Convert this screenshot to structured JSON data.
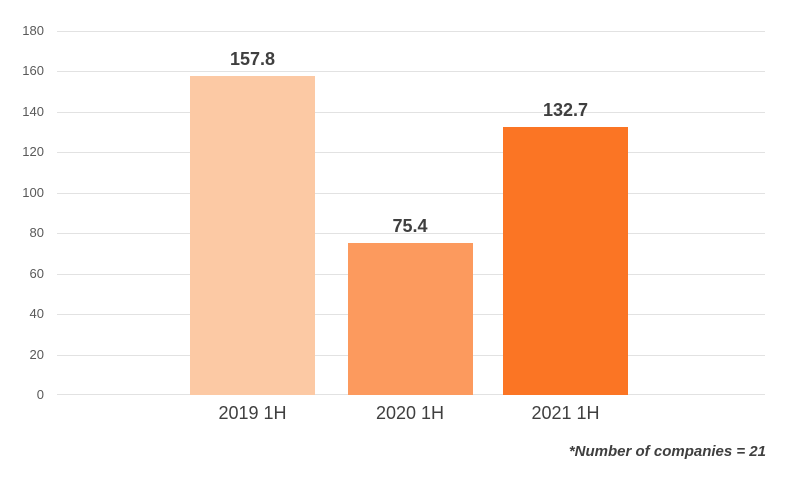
{
  "chart_data": {
    "type": "bar",
    "title": "",
    "xlabel": "",
    "ylabel": "",
    "categories": [
      "2019 1H",
      "2020 1H",
      "2021 1H"
    ],
    "values": [
      157.8,
      75.4,
      132.7
    ],
    "value_labels": [
      "157.8",
      "75.4",
      "132.7"
    ],
    "bar_colors": [
      "#FCC9A4",
      "#FC9A5E",
      "#FB7524"
    ],
    "ylim": [
      0,
      180
    ],
    "yticks": [
      0,
      20,
      40,
      60,
      80,
      100,
      120,
      140,
      160,
      180
    ],
    "grid": "horizontal",
    "legend": "none"
  },
  "footnote": "*Number of companies = 21",
  "colors": {
    "background": "#FFFFFF",
    "gridline": "#E2E2E2",
    "tick_label": "#595959",
    "data_label": "#3F3F3F",
    "category_label": "#3F3F3F",
    "footnote": "#3F3F3F"
  }
}
